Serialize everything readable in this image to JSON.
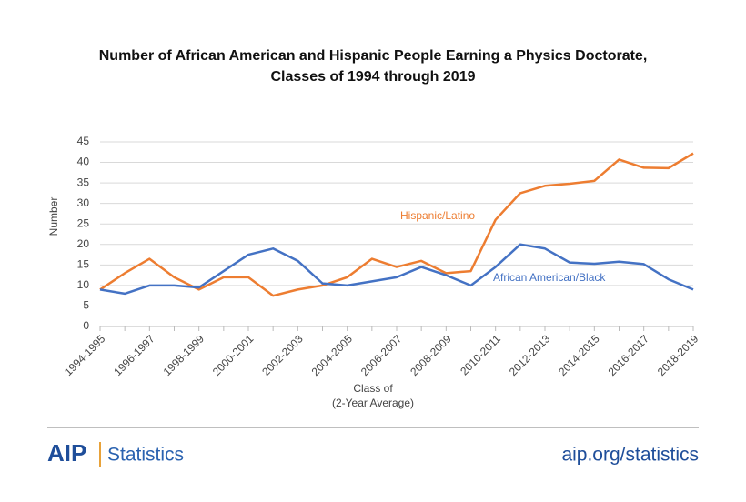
{
  "chart_data": {
    "type": "line",
    "title": [
      "Number of African American and Hispanic People Earning a Physics Doctorate,",
      "Classes of 1994 through 2019"
    ],
    "x_label": [
      "Class of",
      "(2-Year Average)"
    ],
    "y_label": "Number",
    "categories": [
      "1994-1995",
      null,
      "1996-1997",
      null,
      "1998-1999",
      null,
      "2000-2001",
      null,
      "2002-2003",
      null,
      "2004-2005",
      null,
      "2006-2007",
      null,
      "2008-2009",
      null,
      "2010-2011",
      null,
      "2012-2013",
      null,
      "2014-2015",
      null,
      "2016-2017",
      null,
      "2018-2019"
    ],
    "series": [
      {
        "name": "Hispanic/Latino",
        "color": "#ed7d31",
        "values": [
          9,
          13,
          16.5,
          12,
          9,
          12,
          12,
          7.5,
          9,
          10,
          12,
          16.5,
          14.5,
          16,
          13,
          13.5,
          26,
          32.5,
          34.3,
          34.8,
          35.5,
          40.7,
          38.7,
          38.6,
          42.2
        ]
      },
      {
        "name": "African American/Black",
        "color": "#4472c4",
        "values": [
          9,
          8,
          10,
          10,
          9.5,
          13.5,
          17.5,
          19,
          16,
          10.5,
          10,
          11,
          12,
          14.5,
          12.5,
          10,
          14.5,
          20,
          19,
          15.6,
          15.3,
          15.8,
          15.2,
          11.5,
          9
        ]
      }
    ],
    "ylim": [
      0,
      45
    ],
    "yticks": [
      0,
      5,
      10,
      15,
      20,
      25,
      30,
      35,
      40,
      45
    ],
    "grid": true
  },
  "footer": {
    "logo": "AIP",
    "logo_text": "Statistics",
    "url": "aip.org/statistics"
  }
}
